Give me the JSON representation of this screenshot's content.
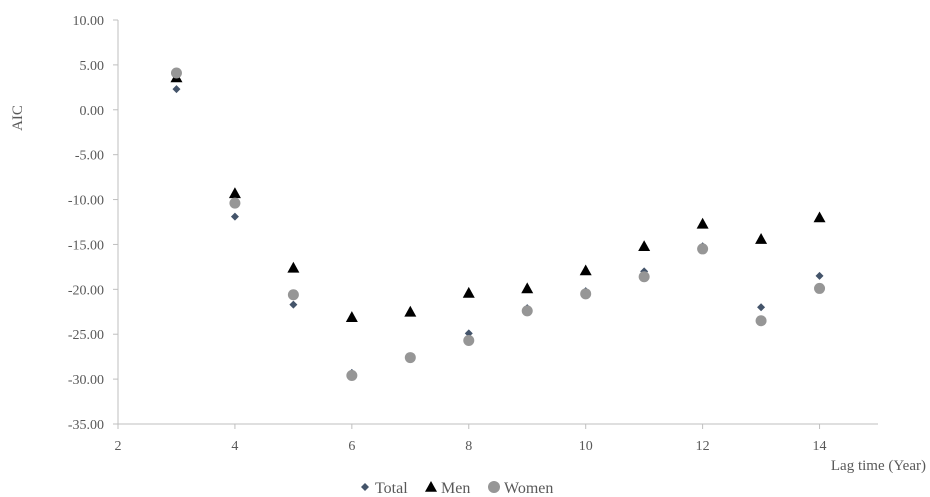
{
  "chart_data": {
    "type": "scatter",
    "xlabel": "Lag time (Year)",
    "ylabel": "AIC",
    "xlim": [
      2,
      15
    ],
    "ylim": [
      -35,
      10
    ],
    "x_ticks": [
      "2",
      "4",
      "6",
      "8",
      "10",
      "12",
      "14"
    ],
    "y_ticks": [
      "10.00",
      "5.00",
      "0.00",
      "-5.00",
      "-10.00",
      "-15.00",
      "-20.00",
      "-25.00",
      "-30.00",
      "-35.00"
    ],
    "grid": false,
    "legend_position": "bottom",
    "series": [
      {
        "name": "Total",
        "marker": "diamond",
        "color": "#44546a",
        "x": [
          3,
          4,
          5,
          6,
          7,
          8,
          9,
          10,
          11,
          12,
          13,
          14
        ],
        "y": [
          2.3,
          -11.9,
          -21.7,
          -29.3,
          -27.5,
          -24.9,
          -22.1,
          -20.2,
          -18.0,
          -15.2,
          -22.0,
          -18.5
        ]
      },
      {
        "name": "Men",
        "marker": "triangle",
        "color": "#000000",
        "x": [
          3,
          4,
          5,
          6,
          7,
          8,
          9,
          10,
          11,
          12,
          13,
          14
        ],
        "y": [
          3.6,
          -9.3,
          -17.6,
          -23.1,
          -22.5,
          -20.4,
          -19.9,
          -17.9,
          -15.2,
          -12.7,
          -14.4,
          -12.0
        ]
      },
      {
        "name": "Women",
        "marker": "circle",
        "color": "#969696",
        "x": [
          3,
          4,
          5,
          6,
          7,
          8,
          9,
          10,
          11,
          12,
          13,
          14
        ],
        "y": [
          4.1,
          -10.4,
          -20.6,
          -29.6,
          -27.6,
          -25.7,
          -22.4,
          -20.5,
          -18.6,
          -15.5,
          -23.5,
          -19.9
        ]
      }
    ]
  }
}
